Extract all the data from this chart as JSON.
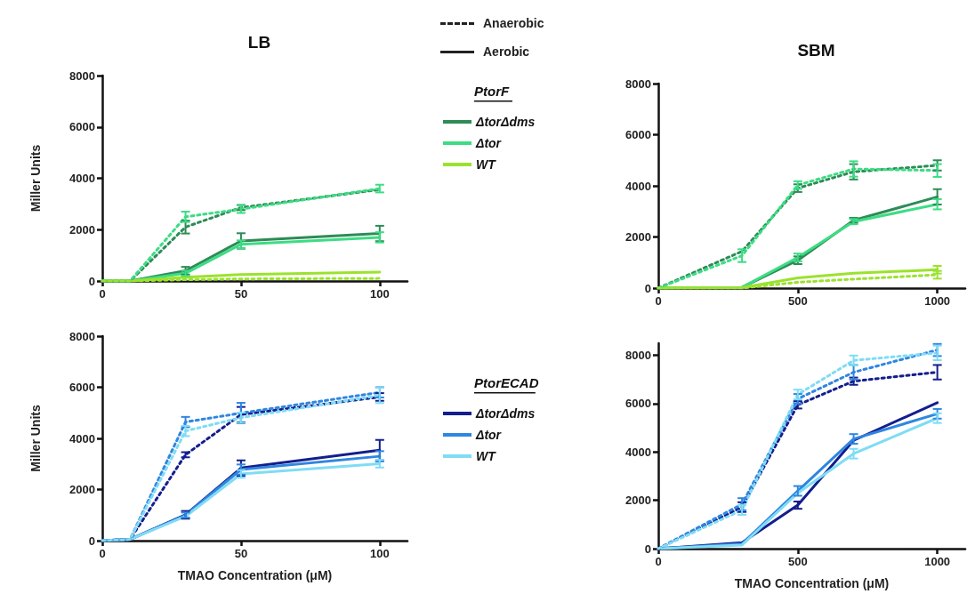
{
  "chart_data": [
    {
      "type": "line",
      "title": "LB",
      "ylabel": "Miller Units",
      "legend": "right",
      "legend_title": "PtorF",
      "annotations": [
        "Anaerobic",
        "Aerobic"
      ],
      "marker": "none",
      "grid": false,
      "x": [
        0,
        10,
        30,
        50,
        100
      ],
      "xlim": [
        0,
        110
      ],
      "xticks": [
        0,
        50,
        100
      ],
      "ylim": [
        0,
        8000
      ],
      "yticks": [
        0,
        2000,
        4000,
        6000,
        8000
      ],
      "series": [
        {
          "name": "ΔtorΔdms",
          "color": "#2e8b57",
          "line_style": "solid",
          "values": [
            0,
            0,
            400,
            1560,
            1850
          ],
          "errors": [
            null,
            null,
            150,
            300,
            300
          ]
        },
        {
          "name": "Δtor",
          "color": "#3ddc84",
          "line_style": "solid",
          "values": [
            0,
            0,
            300,
            1430,
            1700
          ],
          "errors": [
            null,
            null,
            100,
            150,
            200
          ]
        },
        {
          "name": "WT",
          "color": "#9be22d",
          "line_style": "solid",
          "values": [
            0,
            0,
            150,
            250,
            350
          ],
          "errors": [
            null,
            null,
            null,
            null,
            null
          ]
        },
        {
          "color": "#2e8b57",
          "line_style": "dotted",
          "values": [
            0,
            0,
            2100,
            2860,
            3560
          ],
          "errors": [
            null,
            null,
            250,
            100,
            null
          ]
        },
        {
          "color": "#3ddc84",
          "line_style": "dotted",
          "values": [
            0,
            0,
            2500,
            2800,
            3600
          ],
          "errors": [
            null,
            null,
            200,
            150,
            150
          ]
        },
        {
          "color": "#9be22d",
          "line_style": "dotted",
          "values": [
            0,
            0,
            50,
            80,
            100
          ],
          "errors": [
            null,
            null,
            null,
            null,
            null
          ]
        }
      ]
    },
    {
      "type": "line",
      "title": "SBM",
      "legend": false,
      "marker": "none",
      "grid": false,
      "x": [
        0,
        300,
        500,
        700,
        1000
      ],
      "xlim": [
        0,
        1100
      ],
      "xticks": [
        0,
        500,
        1000
      ],
      "ylim": [
        0,
        8000
      ],
      "yticks": [
        0,
        2000,
        4000,
        6000,
        8000
      ],
      "series": [
        {
          "color": "#2e8b57",
          "line_style": "solid",
          "values": [
            0,
            30,
            1090,
            2650,
            3570
          ],
          "errors": [
            null,
            null,
            150,
            100,
            300
          ]
        },
        {
          "color": "#3ddc84",
          "line_style": "solid",
          "values": [
            0,
            30,
            1200,
            2600,
            3280
          ],
          "errors": [
            null,
            null,
            150,
            100,
            200
          ]
        },
        {
          "color": "#9be22d",
          "line_style": "solid",
          "values": [
            0,
            20,
            400,
            580,
            720
          ],
          "errors": [
            null,
            null,
            null,
            null,
            150
          ]
        },
        {
          "color": "#2e8b57",
          "line_style": "dotted",
          "values": [
            0,
            1440,
            3910,
            4550,
            4800
          ],
          "errors": [
            null,
            null,
            150,
            300,
            200
          ]
        },
        {
          "color": "#3ddc84",
          "line_style": "dotted",
          "values": [
            0,
            1270,
            4030,
            4660,
            4600
          ],
          "errors": [
            null,
            250,
            150,
            300,
            250
          ]
        },
        {
          "color": "#9be22d",
          "line_style": "dotted",
          "values": [
            0,
            0,
            230,
            350,
            520
          ],
          "errors": [
            null,
            null,
            null,
            null,
            150
          ]
        }
      ]
    },
    {
      "type": "line",
      "ylabel": "Miller Units",
      "xlabel": "TMAO Concentration (μM)",
      "legend": "right",
      "legend_title": "PtorECAD",
      "marker": "none",
      "grid": false,
      "x": [
        0,
        10,
        30,
        50,
        100
      ],
      "xlim": [
        0,
        110
      ],
      "xticks": [
        0,
        50,
        100
      ],
      "ylim": [
        0,
        8000
      ],
      "yticks": [
        0,
        2000,
        4000,
        6000,
        8000
      ],
      "series": [
        {
          "name": "ΔtorΔdms",
          "color": "#141e8c",
          "line_style": "solid",
          "values": [
            0,
            50,
            1010,
            2840,
            3540
          ],
          "errors": [
            null,
            null,
            150,
            300,
            400
          ]
        },
        {
          "name": "Δtor",
          "color": "#2f86e0",
          "line_style": "solid",
          "values": [
            0,
            50,
            1000,
            2780,
            3300
          ],
          "errors": [
            null,
            null,
            100,
            200,
            200
          ]
        },
        {
          "name": "WT",
          "color": "#7fdcf5",
          "line_style": "solid",
          "values": [
            0,
            50,
            950,
            2610,
            3010
          ],
          "errors": [
            null,
            null,
            null,
            150,
            150
          ]
        },
        {
          "color": "#141e8c",
          "line_style": "dotted",
          "values": [
            0,
            50,
            3360,
            4930,
            5620
          ],
          "errors": [
            null,
            null,
            100,
            300,
            150
          ]
        },
        {
          "color": "#2f86e0",
          "line_style": "dotted",
          "values": [
            0,
            50,
            4640,
            4990,
            5800
          ],
          "errors": [
            null,
            null,
            200,
            400,
            200
          ]
        },
        {
          "color": "#7fdcf5",
          "line_style": "dotted",
          "values": [
            0,
            50,
            4290,
            4810,
            5680
          ],
          "errors": [
            null,
            null,
            200,
            200,
            300
          ]
        }
      ]
    },
    {
      "type": "line",
      "xlabel": "TMAO Concentration (μM)",
      "legend": false,
      "marker": "none",
      "grid": false,
      "x": [
        0,
        300,
        500,
        700,
        1000
      ],
      "xlim": [
        0,
        1100
      ],
      "xticks": [
        0,
        500,
        1000
      ],
      "ylim": [
        0,
        8500
      ],
      "yticks": [
        0,
        2000,
        4000,
        6000,
        8000
      ],
      "series": [
        {
          "color": "#141e8c",
          "line_style": "solid",
          "values": [
            0,
            250,
            1800,
            4480,
            6040
          ],
          "errors": [
            null,
            null,
            150,
            null,
            null
          ]
        },
        {
          "color": "#2f86e0",
          "line_style": "solid",
          "values": [
            0,
            200,
            2390,
            4540,
            5580
          ],
          "errors": [
            null,
            null,
            200,
            200,
            200
          ]
        },
        {
          "color": "#7fdcf5",
          "line_style": "solid",
          "values": [
            0,
            150,
            2300,
            3930,
            5400
          ],
          "errors": [
            null,
            null,
            null,
            200,
            200
          ]
        },
        {
          "color": "#141e8c",
          "line_style": "dotted",
          "values": [
            0,
            1720,
            5950,
            6930,
            7300
          ],
          "errors": [
            null,
            200,
            150,
            150,
            300
          ]
        },
        {
          "color": "#2f86e0",
          "line_style": "dotted",
          "values": [
            0,
            1840,
            6200,
            7300,
            8220
          ],
          "errors": [
            null,
            250,
            200,
            300,
            250
          ]
        },
        {
          "color": "#7fdcf5",
          "line_style": "dotted",
          "values": [
            0,
            1600,
            6380,
            7790,
            8100
          ],
          "errors": [
            null,
            200,
            200,
            200,
            300
          ]
        }
      ]
    }
  ]
}
